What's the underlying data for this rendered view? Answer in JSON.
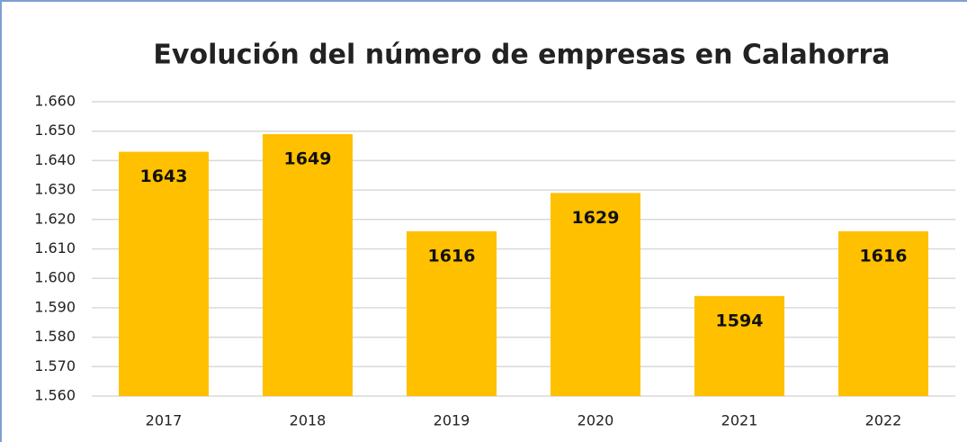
{
  "chart_data": {
    "type": "bar",
    "title": "Evolución del número de empresas en Calahorra",
    "categories": [
      "2017",
      "2018",
      "2019",
      "2020",
      "2021",
      "2022"
    ],
    "values": [
      1643,
      1649,
      1616,
      1629,
      1594,
      1616
    ],
    "color": "#ffc000",
    "ylim": [
      1560,
      1660
    ],
    "yticks": [
      {
        "value": 1560,
        "label": "1.560"
      },
      {
        "value": 1570,
        "label": "1.570"
      },
      {
        "value": 1580,
        "label": "1.580"
      },
      {
        "value": 1590,
        "label": "1.590"
      },
      {
        "value": 1600,
        "label": "1.600"
      },
      {
        "value": 1610,
        "label": "1.610"
      },
      {
        "value": 1620,
        "label": "1.620"
      },
      {
        "value": 1630,
        "label": "1.630"
      },
      {
        "value": 1640,
        "label": "1.640"
      },
      {
        "value": 1650,
        "label": "1.650"
      },
      {
        "value": 1660,
        "label": "1.660"
      }
    ],
    "grid": true
  }
}
